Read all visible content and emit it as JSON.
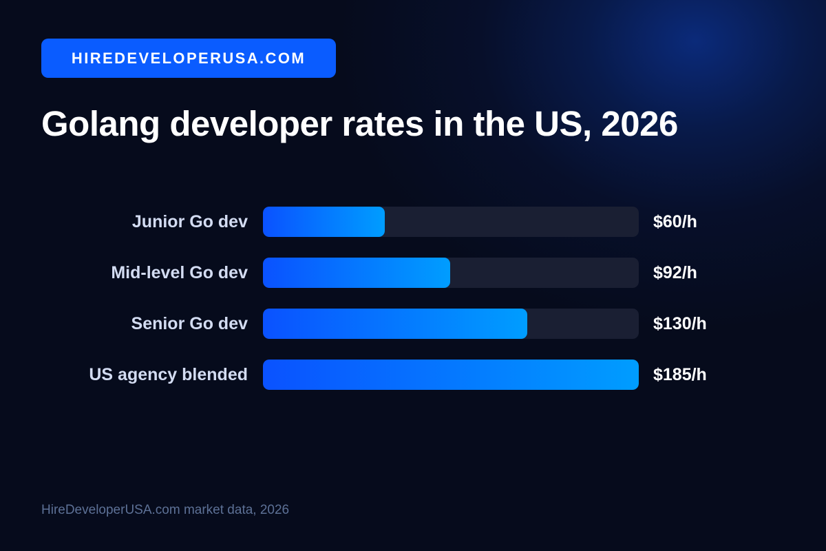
{
  "brand": {
    "label": "HIREDEVELOPERUSA.COM"
  },
  "title": "Golang developer rates in the US, 2026",
  "footer": {
    "source": "HireDeveloperUSA.com market data, 2026"
  },
  "colors": {
    "background": "#060b1c",
    "badge": "#0a5cff",
    "bar_start": "#0a52ff",
    "bar_end": "#009dff",
    "track": "#1a1f33",
    "label": "#d3dcf2",
    "footer": "#5d7196"
  },
  "chart_data": {
    "type": "bar",
    "orientation": "horizontal",
    "title": "Golang developer rates in the US, 2026",
    "categories": [
      "Junior Go dev",
      "Mid-level Go dev",
      "Senior Go dev",
      "US agency blended"
    ],
    "values": [
      60,
      92,
      130,
      185
    ],
    "value_labels": [
      "$60/h",
      "$92/h",
      "$130/h",
      "$185/h"
    ],
    "unit": "$/h",
    "xlim": [
      0,
      185
    ],
    "grid": false,
    "legend": "none"
  }
}
